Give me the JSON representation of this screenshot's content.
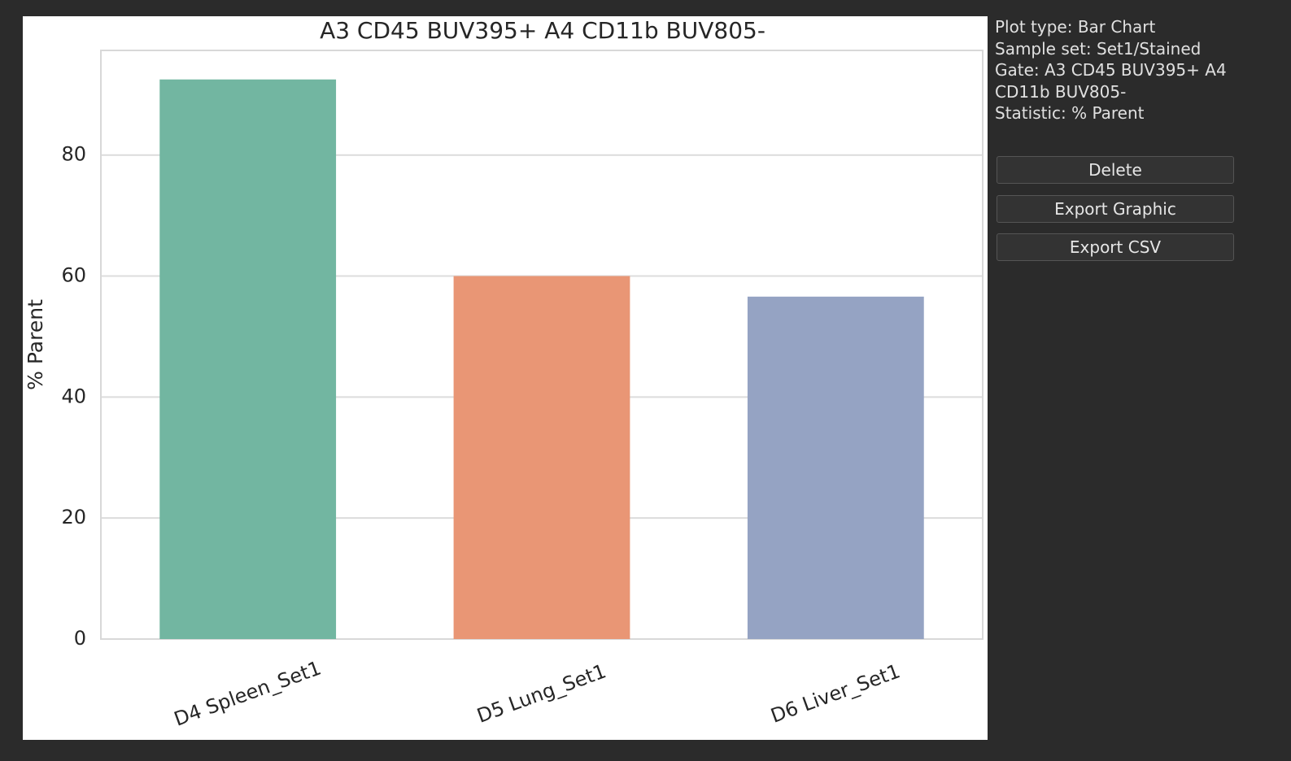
{
  "chart_data": {
    "type": "bar",
    "title": "A3 CD45 BUV395+ A4 CD11b BUV805-",
    "y_label": "% Parent",
    "categories": [
      "D4 Spleen_Set1",
      "D5 Lung_Set1",
      "D6 Liver_Set1"
    ],
    "values": [
      92.5,
      60.0,
      56.6
    ],
    "colors": [
      "#72b6a1",
      "#e99675",
      "#95a3c3"
    ],
    "ylim": [
      0,
      97.3
    ],
    "yticks": [
      0,
      20,
      40,
      60,
      80
    ],
    "grid": true
  },
  "info": [
    "Plot type: Bar Chart",
    "Sample set: Set1/Stained",
    "Gate: A3 CD45 BUV395+ A4 CD11b BUV805-",
    "Statistic: % Parent"
  ],
  "buttons": [
    "Delete",
    "Export Graphic",
    "Export CSV"
  ]
}
